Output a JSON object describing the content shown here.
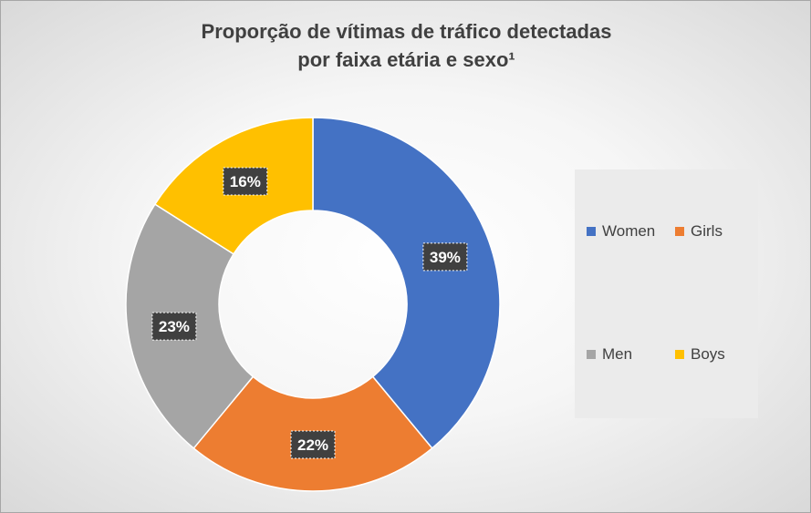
{
  "title_line1": "Proporção de vítimas de tráfico detectadas",
  "title_line2": "por faixa etária e sexo¹",
  "chart_data": {
    "type": "pie",
    "variant": "donut",
    "categories": [
      "Women",
      "Girls",
      "Men",
      "Boys"
    ],
    "values": [
      39,
      22,
      23,
      16
    ],
    "data_labels": [
      "39%",
      "22%",
      "23%",
      "16%"
    ],
    "colors": [
      "#4472c4",
      "#ed7d31",
      "#a5a5a5",
      "#ffc000"
    ],
    "legend_position": "right"
  },
  "legend": [
    {
      "label": "Women",
      "color": "#4472c4"
    },
    {
      "label": "Girls",
      "color": "#ed7d31"
    },
    {
      "label": "Men",
      "color": "#a5a5a5"
    },
    {
      "label": "Boys",
      "color": "#ffc000"
    }
  ]
}
